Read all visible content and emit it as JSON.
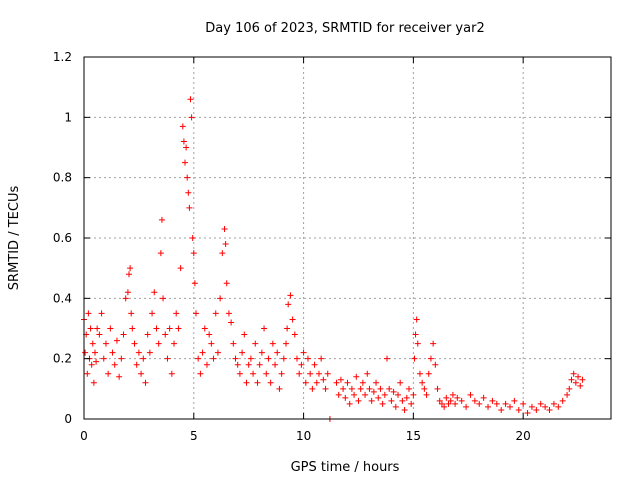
{
  "chart_data": {
    "type": "scatter",
    "title": "Day 106 of 2023, SRMTID for receiver yar2",
    "xlabel": "GPS time / hours",
    "ylabel": "SRMTID / TECUs",
    "xlim": [
      0,
      24
    ],
    "ylim": [
      0,
      1.2
    ],
    "xticks": [
      0,
      5,
      10,
      15,
      20
    ],
    "yticks": [
      0,
      0.2,
      0.4,
      0.6,
      0.8,
      1,
      1.2
    ],
    "xtick_labels": [
      "0",
      "5",
      "10",
      "15",
      "20"
    ],
    "ytick_labels": [
      "0",
      "0.2",
      "0.4",
      "0.6",
      "0.8",
      "1",
      "1.2"
    ],
    "grid": true,
    "marker": "+",
    "color": "#ff0000",
    "series": [
      {
        "name": "SRMTID",
        "x": [
          0.0,
          0.05,
          0.1,
          0.15,
          0.2,
          0.25,
          0.3,
          0.35,
          0.4,
          0.45,
          0.5,
          0.55,
          0.6,
          0.7,
          0.8,
          0.9,
          1.0,
          1.1,
          1.2,
          1.3,
          1.4,
          1.5,
          1.6,
          1.7,
          1.8,
          1.9,
          2.0,
          2.05,
          2.1,
          2.15,
          2.2,
          2.3,
          2.4,
          2.5,
          2.6,
          2.7,
          2.8,
          2.9,
          3.0,
          3.1,
          3.2,
          3.3,
          3.4,
          3.5,
          3.55,
          3.6,
          3.7,
          3.8,
          3.9,
          4.0,
          4.1,
          4.2,
          4.3,
          4.4,
          4.5,
          4.55,
          4.6,
          4.65,
          4.7,
          4.75,
          4.8,
          4.85,
          4.9,
          4.95,
          5.0,
          5.05,
          5.1,
          5.2,
          5.3,
          5.4,
          5.5,
          5.6,
          5.7,
          5.8,
          5.9,
          6.0,
          6.1,
          6.2,
          6.3,
          6.4,
          6.45,
          6.5,
          6.6,
          6.7,
          6.8,
          6.9,
          7.0,
          7.1,
          7.2,
          7.3,
          7.4,
          7.5,
          7.6,
          7.7,
          7.8,
          7.9,
          8.0,
          8.1,
          8.2,
          8.3,
          8.4,
          8.5,
          8.6,
          8.7,
          8.8,
          8.9,
          9.0,
          9.1,
          9.2,
          9.25,
          9.3,
          9.4,
          9.5,
          9.6,
          9.7,
          9.8,
          9.9,
          10.0,
          10.1,
          10.2,
          10.3,
          10.4,
          10.5,
          10.6,
          10.7,
          10.8,
          10.9,
          11.0,
          11.1,
          11.2,
          11.5,
          11.6,
          11.7,
          11.8,
          11.9,
          12.0,
          12.1,
          12.2,
          12.3,
          12.4,
          12.5,
          12.6,
          12.7,
          12.8,
          12.9,
          13.0,
          13.1,
          13.2,
          13.3,
          13.4,
          13.5,
          13.6,
          13.7,
          13.8,
          13.9,
          14.0,
          14.1,
          14.2,
          14.3,
          14.4,
          14.5,
          14.6,
          14.7,
          14.8,
          14.9,
          15.0,
          15.05,
          15.1,
          15.15,
          15.2,
          15.3,
          15.4,
          15.5,
          15.6,
          15.7,
          15.8,
          15.9,
          16.0,
          16.1,
          16.2,
          16.3,
          16.4,
          16.5,
          16.6,
          16.7,
          16.8,
          16.9,
          17.0,
          17.2,
          17.4,
          17.6,
          17.8,
          18.0,
          18.2,
          18.4,
          18.6,
          18.8,
          19.0,
          19.2,
          19.4,
          19.6,
          19.8,
          20.0,
          20.2,
          20.4,
          20.6,
          20.8,
          21.0,
          21.2,
          21.4,
          21.6,
          21.8,
          22.0,
          22.1,
          22.2,
          22.3,
          22.4,
          22.5,
          22.6,
          22.7
        ],
        "y": [
          0.33,
          0.22,
          0.28,
          0.15,
          0.35,
          0.2,
          0.3,
          0.18,
          0.25,
          0.12,
          0.22,
          0.19,
          0.3,
          0.28,
          0.35,
          0.2,
          0.25,
          0.15,
          0.3,
          0.22,
          0.18,
          0.26,
          0.14,
          0.2,
          0.28,
          0.4,
          0.42,
          0.48,
          0.5,
          0.35,
          0.3,
          0.25,
          0.18,
          0.22,
          0.15,
          0.2,
          0.12,
          0.28,
          0.22,
          0.35,
          0.42,
          0.3,
          0.25,
          0.55,
          0.66,
          0.4,
          0.28,
          0.2,
          0.3,
          0.15,
          0.25,
          0.35,
          0.3,
          0.5,
          0.97,
          0.92,
          0.85,
          0.9,
          0.8,
          0.75,
          0.7,
          1.06,
          1.0,
          0.6,
          0.55,
          0.45,
          0.35,
          0.2,
          0.15,
          0.22,
          0.3,
          0.18,
          0.28,
          0.25,
          0.2,
          0.35,
          0.22,
          0.4,
          0.55,
          0.63,
          0.58,
          0.45,
          0.35,
          0.32,
          0.25,
          0.2,
          0.18,
          0.15,
          0.22,
          0.28,
          0.12,
          0.18,
          0.2,
          0.15,
          0.25,
          0.12,
          0.18,
          0.22,
          0.3,
          0.15,
          0.2,
          0.12,
          0.25,
          0.18,
          0.22,
          0.1,
          0.15,
          0.2,
          0.25,
          0.3,
          0.38,
          0.41,
          0.33,
          0.28,
          0.2,
          0.15,
          0.18,
          0.22,
          0.12,
          0.2,
          0.15,
          0.1,
          0.18,
          0.12,
          0.15,
          0.2,
          0.13,
          0.1,
          0.15,
          0.0,
          0.12,
          0.08,
          0.13,
          0.1,
          0.07,
          0.12,
          0.05,
          0.1,
          0.08,
          0.14,
          0.06,
          0.1,
          0.12,
          0.08,
          0.15,
          0.1,
          0.06,
          0.09,
          0.12,
          0.07,
          0.1,
          0.05,
          0.08,
          0.2,
          0.1,
          0.06,
          0.09,
          0.04,
          0.08,
          0.12,
          0.06,
          0.03,
          0.07,
          0.1,
          0.05,
          0.08,
          0.2,
          0.28,
          0.33,
          0.25,
          0.15,
          0.12,
          0.1,
          0.08,
          0.15,
          0.2,
          0.25,
          0.18,
          0.1,
          0.06,
          0.05,
          0.04,
          0.07,
          0.05,
          0.06,
          0.08,
          0.05,
          0.07,
          0.06,
          0.04,
          0.08,
          0.06,
          0.05,
          0.07,
          0.04,
          0.06,
          0.05,
          0.03,
          0.05,
          0.04,
          0.06,
          0.03,
          0.05,
          0.02,
          0.04,
          0.03,
          0.05,
          0.04,
          0.03,
          0.05,
          0.04,
          0.06,
          0.08,
          0.1,
          0.13,
          0.15,
          0.12,
          0.14,
          0.11,
          0.13
        ]
      }
    ]
  }
}
